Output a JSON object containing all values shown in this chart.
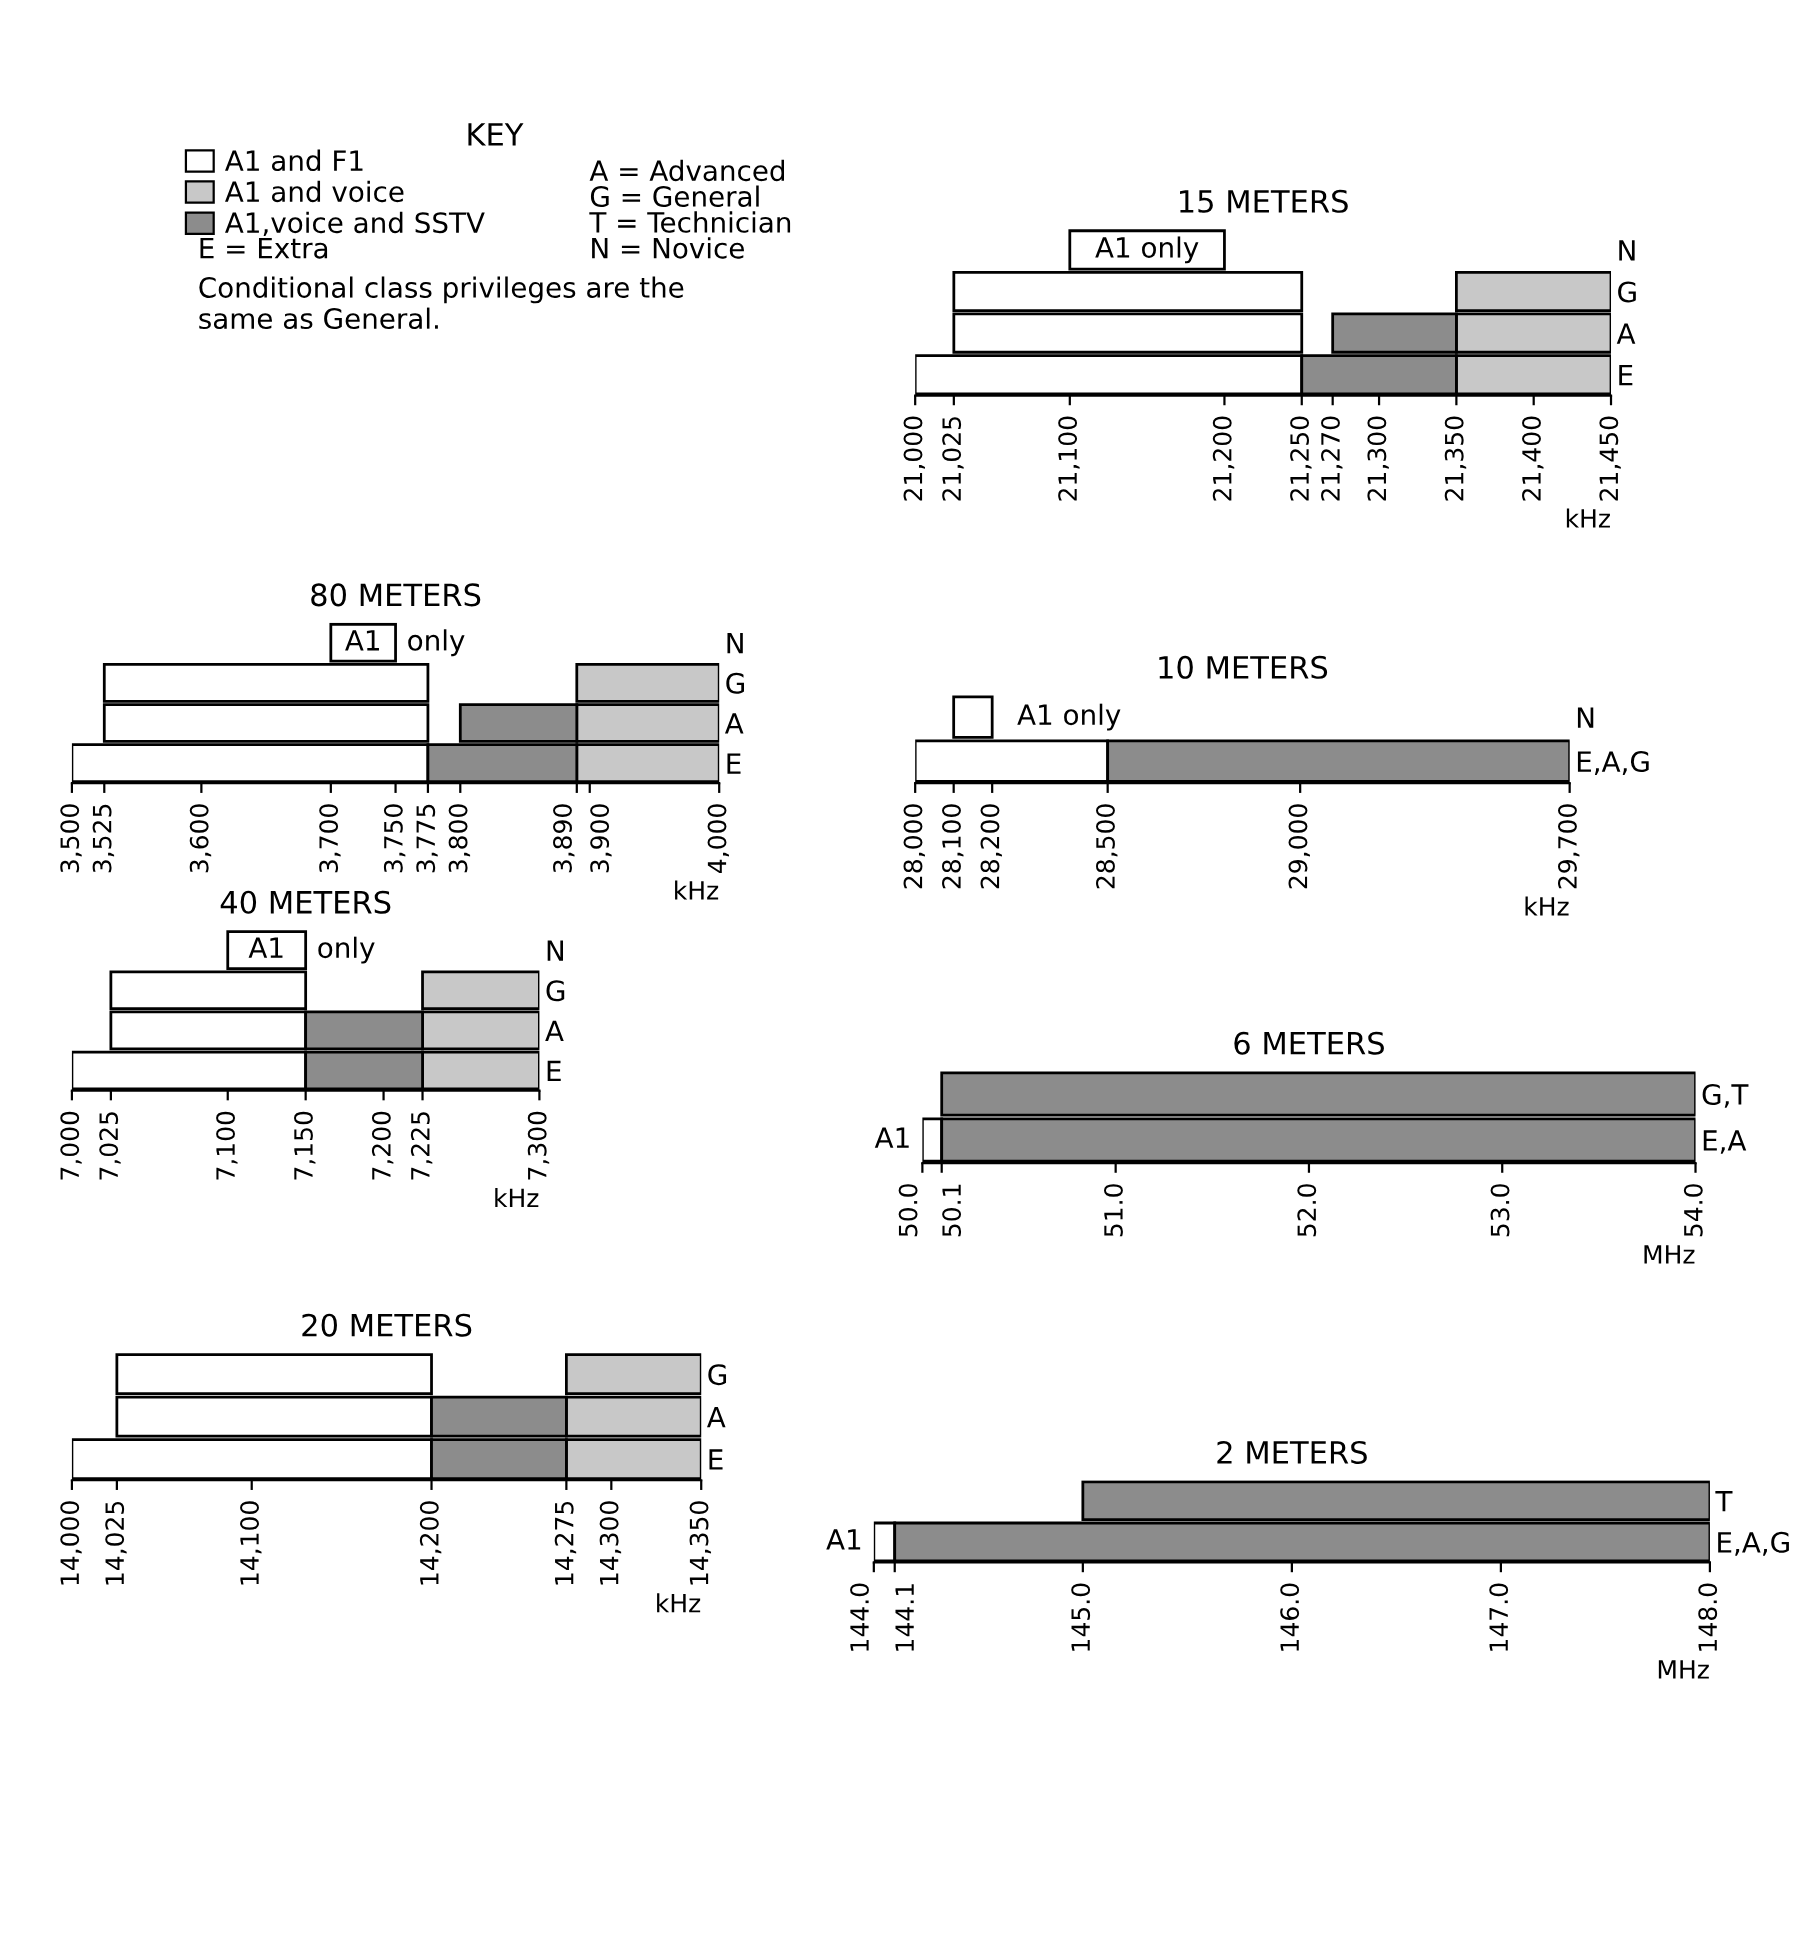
{
  "chart_data": [
    {
      "type": "other",
      "title": "KEY",
      "series": [
        {
          "name": "A1 and F1",
          "color": "#ffffff"
        },
        {
          "name": "A1 and voice",
          "color": "#c8c8c8"
        },
        {
          "name": "A1,voice and SSTV",
          "color": "#8c8c8c"
        }
      ],
      "annotations": [
        "A = Advanced",
        "G = General",
        "T = Technician",
        "N = Novice",
        "E = Extra",
        "Conditional class privileges are the\nsame as General."
      ]
    },
    {
      "type": "bar",
      "orientation": "horizontal",
      "title": "15 METERS",
      "xlabel": "kHz",
      "categories": [
        "N",
        "G",
        "A",
        "E"
      ],
      "series": [
        {
          "color": "#ffffff",
          "values": [
            100,
            225,
            225,
            250
          ],
          "base": [
            21100,
            21025,
            21025,
            21000
          ]
        },
        {
          "color": "#c8c8c8",
          "values": [
            null,
            100,
            100,
            100
          ],
          "base": [
            null,
            21350,
            21350,
            21350
          ]
        },
        {
          "color": "#8c8c8c",
          "values": [
            null,
            null,
            80,
            100
          ],
          "base": [
            null,
            null,
            21270,
            21250
          ]
        }
      ],
      "xlim": [
        21000,
        21450
      ],
      "xticks": [
        {
          "value": 21000,
          "label": "21,000"
        },
        {
          "value": 21025,
          "label": "21,025"
        },
        {
          "value": 21100,
          "label": "21,100"
        },
        {
          "value": 21200,
          "label": "21,200"
        },
        {
          "value": 21250,
          "label": "21,250"
        },
        {
          "value": 21270,
          "label": "21,270"
        },
        {
          "value": 21300,
          "label": "21,300"
        },
        {
          "value": 21350,
          "label": "21,350"
        },
        {
          "value": 21400,
          "label": "21,400"
        },
        {
          "value": 21450,
          "label": "21,450"
        }
      ],
      "annotations": [
        {
          "text": "A1 only",
          "x": 21150,
          "y": "N"
        }
      ]
    },
    {
      "type": "bar",
      "orientation": "horizontal",
      "title": "80 METERS",
      "xlabel": "kHz",
      "categories": [
        "N",
        "G",
        "A",
        "E"
      ],
      "series": [
        {
          "color": "#ffffff",
          "values": [
            50,
            250,
            250,
            275
          ],
          "base": [
            3700,
            3525,
            3525,
            3500
          ]
        },
        {
          "color": "#c8c8c8",
          "values": [
            null,
            110,
            110,
            110
          ],
          "base": [
            null,
            3890,
            3890,
            3890
          ]
        },
        {
          "color": "#8c8c8c",
          "values": [
            null,
            null,
            90,
            115
          ],
          "base": [
            null,
            null,
            3800,
            3775
          ]
        }
      ],
      "xlim": [
        3500,
        4000
      ],
      "xticks": [
        {
          "value": 3500,
          "label": "3,500"
        },
        {
          "value": 3525,
          "label": "3,525"
        },
        {
          "value": 3600,
          "label": "3,600"
        },
        {
          "value": 3700,
          "label": "3,700"
        },
        {
          "value": 3750,
          "label": "3,750"
        },
        {
          "value": 3775,
          "label": "3,775"
        },
        {
          "value": 3800,
          "label": "3,800"
        },
        {
          "value": 3890,
          "label": "3,890"
        },
        {
          "value": 3900,
          "label": "3,900"
        },
        {
          "value": 4000,
          "label": "4,000"
        }
      ],
      "annotations": [
        {
          "text": "A1",
          "x": 3725,
          "y": "N"
        },
        "only"
      ]
    },
    {
      "type": "bar",
      "orientation": "horizontal",
      "title": "10 METERS",
      "xlabel": "kHz",
      "categories": [
        "N",
        "E,A,G"
      ],
      "series": [
        {
          "color": "#ffffff",
          "values": [
            100,
            500
          ],
          "base": [
            28100,
            28000
          ]
        },
        {
          "color": "#8c8c8c",
          "values": [
            null,
            1200
          ],
          "base": [
            null,
            28500
          ]
        }
      ],
      "xlim": [
        28000,
        29700
      ],
      "xticks": [
        {
          "value": 28000,
          "label": "28,000"
        },
        {
          "value": 28100,
          "label": "28,100"
        },
        {
          "value": 28200,
          "label": "28,200"
        },
        {
          "value": 28500,
          "label": "28,500"
        },
        {
          "value": 29000,
          "label": "29,000"
        },
        {
          "value": 29700,
          "label": "29,700"
        }
      ],
      "annotations": [
        {
          "text": "A1 only",
          "x": 28400,
          "y": "N"
        }
      ]
    },
    {
      "type": "bar",
      "orientation": "horizontal",
      "title": "40 METERS",
      "xlabel": "kHz",
      "categories": [
        "N",
        "G",
        "A",
        "E"
      ],
      "series": [
        {
          "color": "#ffffff",
          "values": [
            50,
            125,
            125,
            150
          ],
          "base": [
            7100,
            7025,
            7025,
            7000
          ]
        },
        {
          "color": "#c8c8c8",
          "values": [
            null,
            75,
            75,
            75
          ],
          "base": [
            null,
            7225,
            7225,
            7225
          ]
        },
        {
          "color": "#8c8c8c",
          "values": [
            null,
            null,
            75,
            75
          ],
          "base": [
            null,
            null,
            7150,
            7150
          ]
        }
      ],
      "xlim": [
        7000,
        7300
      ],
      "xticks": [
        {
          "value": 7000,
          "label": "7,000"
        },
        {
          "value": 7025,
          "label": "7,025"
        },
        {
          "value": 7100,
          "label": "7,100"
        },
        {
          "value": 7150,
          "label": "7,150"
        },
        {
          "value": 7200,
          "label": "7,200"
        },
        {
          "value": 7225,
          "label": "7,225"
        },
        {
          "value": 7300,
          "label": "7,300"
        }
      ],
      "annotations": [
        {
          "text": "A1",
          "x": 7125,
          "y": "N"
        },
        "only"
      ]
    },
    {
      "type": "bar",
      "orientation": "horizontal",
      "title": "6 METERS",
      "xlabel": "MHz",
      "categories": [
        "G,T",
        "E,A"
      ],
      "series": [
        {
          "color": "#ffffff",
          "values": [
            null,
            0.1
          ],
          "base": [
            null,
            50.0
          ]
        },
        {
          "color": "#8c8c8c",
          "values": [
            3.9,
            3.9
          ],
          "base": [
            50.1,
            50.1
          ]
        }
      ],
      "xlim": [
        50.0,
        54.0
      ],
      "xticks": [
        {
          "value": 50.0,
          "label": "50.0"
        },
        {
          "value": 50.1,
          "label": "50.1"
        },
        {
          "value": 51.0,
          "label": "51.0"
        },
        {
          "value": 52.0,
          "label": "52.0"
        },
        {
          "value": 53.0,
          "label": "53.0"
        },
        {
          "value": 54.0,
          "label": "54.0"
        }
      ],
      "annotations": [
        {
          "text": "A1",
          "x": 50.0,
          "y": "E,A"
        }
      ]
    },
    {
      "type": "bar",
      "orientation": "horizontal",
      "title": "20 METERS",
      "xlabel": "kHz",
      "categories": [
        "G",
        "A",
        "E"
      ],
      "series": [
        {
          "color": "#ffffff",
          "values": [
            175,
            175,
            200
          ],
          "base": [
            14025,
            14025,
            14000
          ]
        },
        {
          "color": "#c8c8c8",
          "values": [
            75,
            75,
            75
          ],
          "base": [
            14275,
            14275,
            14275
          ]
        },
        {
          "color": "#8c8c8c",
          "values": [
            null,
            75,
            75
          ],
          "base": [
            null,
            14200,
            14200
          ]
        }
      ],
      "xlim": [
        14000,
        14350
      ],
      "xticks": [
        {
          "value": 14000,
          "label": "14,000"
        },
        {
          "value": 14025,
          "label": "14,025"
        },
        {
          "value": 14100,
          "label": "14,100"
        },
        {
          "value": 14200,
          "label": "14,200"
        },
        {
          "value": 14275,
          "label": "14,275"
        },
        {
          "value": 14300,
          "label": "14,300"
        },
        {
          "value": 14350,
          "label": "14,350"
        }
      ]
    },
    {
      "type": "bar",
      "orientation": "horizontal",
      "title": "2 METERS",
      "xlabel": "MHz",
      "categories": [
        "T",
        "E,A,G"
      ],
      "series": [
        {
          "color": "#ffffff",
          "values": [
            null,
            0.1
          ],
          "base": [
            null,
            144.0
          ]
        },
        {
          "color": "#8c8c8c",
          "values": [
            3.0,
            3.9
          ],
          "base": [
            145.0,
            144.1
          ]
        }
      ],
      "xlim": [
        144.0,
        148.0
      ],
      "xticks": [
        {
          "value": 144.0,
          "label": "144.0"
        },
        {
          "value": 144.1,
          "label": "144.1"
        },
        {
          "value": 145.0,
          "label": "145.0"
        },
        {
          "value": 146.0,
          "label": "146.0"
        },
        {
          "value": 147.0,
          "label": "147.0"
        },
        {
          "value": 148.0,
          "label": "148.0"
        }
      ],
      "annotations": [
        {
          "text": "A1",
          "x": 144.0,
          "y": "E,A,G"
        }
      ]
    }
  ]
}
